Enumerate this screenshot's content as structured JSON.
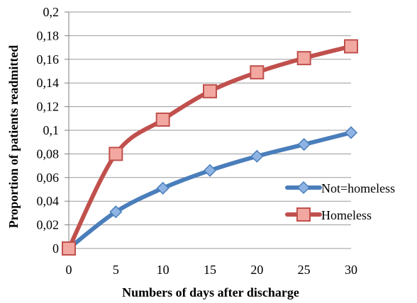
{
  "chart_data": {
    "type": "line",
    "title": "",
    "xlabel": "Numbers of days after discharge",
    "ylabel": "Proportion of patients readmitted",
    "x": [
      0,
      5,
      10,
      15,
      20,
      25,
      30
    ],
    "xlim": [
      0,
      30
    ],
    "ylim": [
      0,
      0.2
    ],
    "x_ticks": [
      {
        "value": 0,
        "label": "0"
      },
      {
        "value": 5,
        "label": "5"
      },
      {
        "value": 10,
        "label": "10"
      },
      {
        "value": 15,
        "label": "15"
      },
      {
        "value": 20,
        "label": "20"
      },
      {
        "value": 25,
        "label": "25"
      },
      {
        "value": 30,
        "label": "30"
      }
    ],
    "y_ticks": [
      {
        "value": 0,
        "label": "0"
      },
      {
        "value": 0.02,
        "label": "0,02"
      },
      {
        "value": 0.04,
        "label": "0,04"
      },
      {
        "value": 0.06,
        "label": "0,06"
      },
      {
        "value": 0.08,
        "label": "0,08"
      },
      {
        "value": 0.1,
        "label": "0,1"
      },
      {
        "value": 0.12,
        "label": "0,12"
      },
      {
        "value": 0.14,
        "label": "0,14"
      },
      {
        "value": 0.16,
        "label": "0,16"
      },
      {
        "value": 0.18,
        "label": "0,18"
      },
      {
        "value": 0.2,
        "label": "0,2"
      }
    ],
    "grid": "horizontal",
    "legend_position": "right",
    "series": [
      {
        "name": "Not=homeless",
        "values": [
          0,
          0.031,
          0.051,
          0.066,
          0.078,
          0.088,
          0.098
        ],
        "color": "#4a7ebb",
        "marker": "diamond"
      },
      {
        "name": "Homeless",
        "values": [
          0,
          0.08,
          0.109,
          0.133,
          0.149,
          0.161,
          0.171
        ],
        "color": "#c0504d",
        "marker": "square"
      }
    ]
  }
}
